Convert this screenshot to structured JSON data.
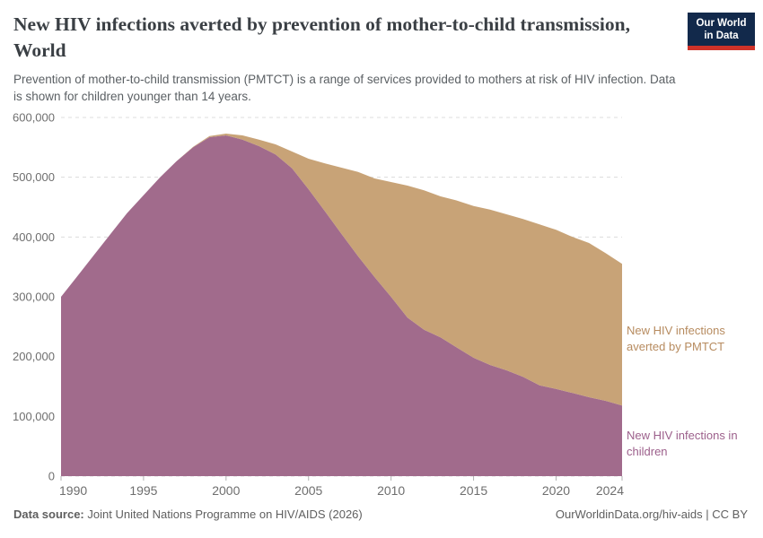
{
  "header": {
    "title": "New HIV infections averted by prevention of mother-to-child transmission, World",
    "subtitle": "Prevention of mother-to-child transmission (PMTCT) is a range of services provided to mothers at risk of HIV infection. Data is shown for children younger than 14 years.",
    "logo": {
      "line1": "Our World",
      "line2": "in Data"
    }
  },
  "footer": {
    "source_label": "Data source:",
    "source_text": "Joint United Nations Programme on HIV/AIDS (2026)",
    "attribution": "OurWorldinData.org/hiv-aids | CC BY"
  },
  "colors": {
    "background": "#ffffff",
    "title": "#3a3f44",
    "subtitle": "#5b6064",
    "axis_text": "#6e6e6e",
    "gridline": "#dcdcdc",
    "tick": "#b3b3b3",
    "label_averted": "#b78b5f",
    "label_children": "#9c5f8b",
    "footer_text": "#5f5f5f",
    "logo_bg": "#12294b",
    "logo_accent": "#cf3229"
  },
  "chart_data": {
    "type": "area",
    "stacked": true,
    "title": "New HIV infections averted by prevention of mother-to-child transmission, World",
    "xlabel": "",
    "ylabel": "",
    "ylim": [
      0,
      600000
    ],
    "y_ticks": [
      0,
      100000,
      200000,
      300000,
      400000,
      500000,
      600000
    ],
    "x_ticks": [
      1990,
      1995,
      2000,
      2005,
      2010,
      2015,
      2020,
      2024
    ],
    "grid": "dashed-horizontal",
    "legend_position": "right-edge-labels",
    "x": [
      1990,
      1991,
      1992,
      1993,
      1994,
      1995,
      1996,
      1997,
      1998,
      1999,
      2000,
      2001,
      2002,
      2003,
      2004,
      2005,
      2006,
      2007,
      2008,
      2009,
      2010,
      2011,
      2012,
      2013,
      2014,
      2015,
      2016,
      2017,
      2018,
      2019,
      2020,
      2021,
      2022,
      2023,
      2024
    ],
    "series": [
      {
        "name": "New HIV infections in children",
        "color": "#a16b8c",
        "values": [
          300000,
          335000,
          370000,
          405000,
          440000,
          470000,
          500000,
          527000,
          550000,
          567000,
          570000,
          563000,
          552000,
          538000,
          515000,
          480000,
          443000,
          405000,
          368000,
          333000,
          300000,
          265000,
          245000,
          232000,
          215000,
          198000,
          186000,
          177000,
          166000,
          152000,
          146000,
          139000,
          132000,
          126000,
          118000
        ]
      },
      {
        "name": "New HIV infections averted by PMTCT",
        "color": "#c8a377",
        "values": [
          0,
          0,
          0,
          0,
          0,
          0,
          0,
          0,
          1000,
          2000,
          3000,
          7000,
          11000,
          17000,
          28000,
          51000,
          80000,
          111000,
          141000,
          165000,
          192000,
          221000,
          233000,
          236000,
          246000,
          254000,
          260000,
          261000,
          264000,
          269000,
          266000,
          261000,
          258000,
          247000,
          237000
        ]
      }
    ]
  }
}
